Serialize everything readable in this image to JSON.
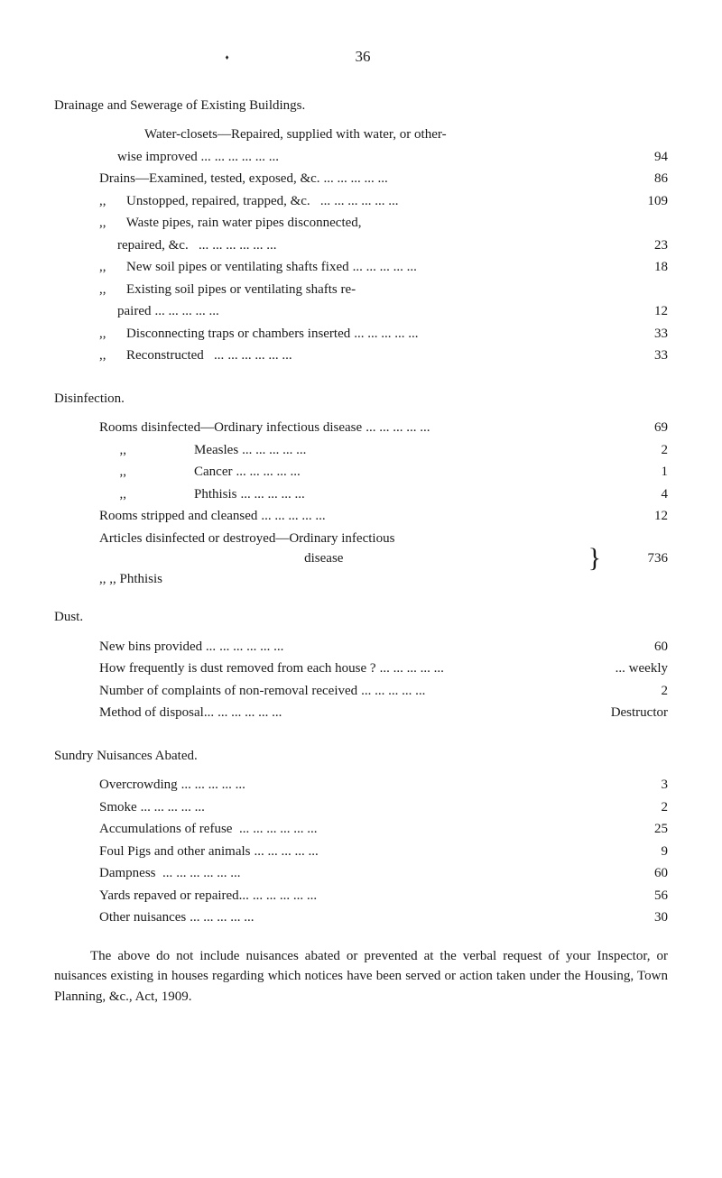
{
  "page_number": "36",
  "drainage": {
    "heading": "Drainage and Sewerage of Existing Buildings.",
    "intro": "Water-closets—Repaired, supplied with water, or other-",
    "rows": [
      {
        "label": "wise improved ...",
        "indent": "sub-indent2",
        "value": "94"
      },
      {
        "label": "Drains—Examined, tested, exposed, &c.",
        "indent": "sub-indent",
        "value": "86"
      },
      {
        "label": ",,      Unstopped, repaired, trapped, &c.   ...",
        "indent": "sub-indent",
        "value": "109"
      },
      {
        "label": ",,      Waste pipes, rain water pipes disconnected,",
        "indent": "sub-indent",
        "value": ""
      },
      {
        "label": "repaired, &c.   ...",
        "indent": "sub-indent2",
        "value": "23"
      },
      {
        "label": ",,      New soil pipes or ventilating shafts fixed",
        "indent": "sub-indent",
        "value": "18"
      },
      {
        "label": ",,      Existing soil pipes or ventilating shafts re-",
        "indent": "sub-indent",
        "value": ""
      },
      {
        "label": "paired",
        "indent": "sub-indent2",
        "value": "12"
      },
      {
        "label": ",,      Disconnecting traps or chambers inserted",
        "indent": "sub-indent",
        "value": "33"
      },
      {
        "label": ",,      Reconstructed   ...",
        "indent": "sub-indent",
        "value": "33"
      }
    ]
  },
  "disinfection": {
    "heading": "Disinfection.",
    "rows": [
      {
        "label": "Rooms disinfected—Ordinary infectious disease",
        "indent": "sub-indent",
        "value": "69"
      },
      {
        "label": "      ,,                    Measles",
        "indent": "sub-indent",
        "value": "2"
      },
      {
        "label": "      ,,                    Cancer",
        "indent": "sub-indent",
        "value": "1"
      },
      {
        "label": "      ,,                    Phthisis",
        "indent": "sub-indent",
        "value": "4"
      },
      {
        "label": "Rooms stripped and cleansed",
        "indent": "sub-indent",
        "value": "12"
      }
    ],
    "brace": {
      "line1": "Articles disinfected or destroyed—Ordinary infectious",
      "line2_label": "disease",
      "line3_label": ",,                        ,,                   Phthisis",
      "value": "736"
    }
  },
  "dust": {
    "heading": "Dust.",
    "rows": [
      {
        "label": "New bins provided ...",
        "indent": "sub-indent",
        "value": "60"
      },
      {
        "label": "How frequently is dust removed from each house ?",
        "indent": "sub-indent",
        "value": "... weekly"
      },
      {
        "label": "Number of complaints of non-removal received",
        "indent": "sub-indent",
        "value": "2"
      },
      {
        "label": "Method of disposal...",
        "indent": "sub-indent",
        "value": "Destructor"
      }
    ]
  },
  "nuisances": {
    "heading": "Sundry Nuisances Abated.",
    "rows": [
      {
        "label": "Overcrowding",
        "indent": "sub-indent",
        "value": "3"
      },
      {
        "label": "Smoke",
        "indent": "sub-indent",
        "value": "2"
      },
      {
        "label": "Accumulations of refuse  ...",
        "indent": "sub-indent",
        "value": "25"
      },
      {
        "label": "Foul Pigs and other animals",
        "indent": "sub-indent",
        "value": "9"
      },
      {
        "label": "Dampness  ...",
        "indent": "sub-indent",
        "value": "60"
      },
      {
        "label": "Yards repaved or repaired...",
        "indent": "sub-indent",
        "value": "56"
      },
      {
        "label": "Other nuisances",
        "indent": "sub-indent",
        "value": "30"
      }
    ]
  },
  "closing": "The above do not include nuisances abated or prevented at the verbal request of your Inspector, or nuisances existing in houses regarding which notices have been served or action taken under the Housing, Town Planning, &c., Act, 1909.",
  "dots": "...      ...      ...      ...      ..."
}
